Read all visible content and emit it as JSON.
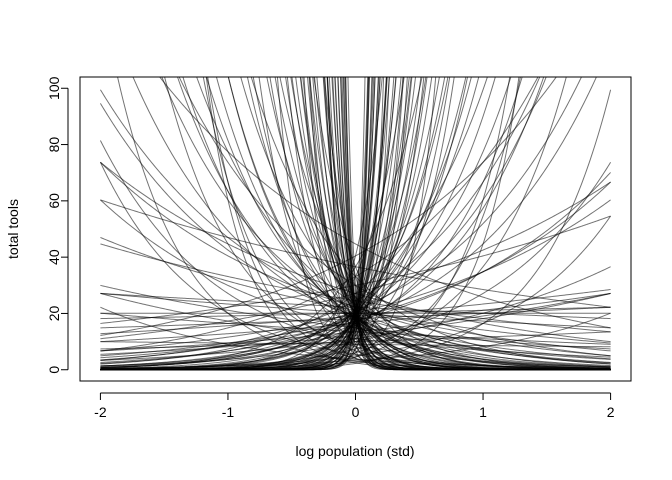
{
  "chart_data": {
    "type": "line",
    "title": "",
    "xlabel": "log population (std)",
    "ylabel": "total tools",
    "xlim": [
      -2.16,
      2.16
    ],
    "ylim": [
      -4,
      104
    ],
    "x_ticks": [
      -2,
      -1,
      0,
      1,
      2
    ],
    "x_tick_labels": [
      "-2",
      "-1",
      "0",
      "1",
      "2"
    ],
    "y_ticks": [
      0,
      20,
      40,
      60,
      80,
      100
    ],
    "y_tick_labels": [
      "0",
      "20",
      "40",
      "60",
      "80",
      "100"
    ],
    "grid": false,
    "legend": "none",
    "line_color": "#000000",
    "line_opacity": 0.55,
    "x_range": [
      -2,
      2
    ],
    "curve_model": "lambda = exp(a + b * x)",
    "prior_draws": [
      {
        "a": 3.0,
        "b": 0.0
      },
      {
        "a": 2.9,
        "b": 0.1
      },
      {
        "a": 3.1,
        "b": -0.1
      },
      {
        "a": 2.8,
        "b": 0.25
      },
      {
        "a": 3.2,
        "b": -0.3
      },
      {
        "a": 2.7,
        "b": -0.35
      },
      {
        "a": 3.0,
        "b": 0.55
      },
      {
        "a": 3.1,
        "b": -0.6
      },
      {
        "a": 2.85,
        "b": 0.7
      },
      {
        "a": 2.95,
        "b": -0.8
      },
      {
        "a": 3.05,
        "b": 0.9
      },
      {
        "a": 2.9,
        "b": -1.0
      },
      {
        "a": 3.0,
        "b": 1.1
      },
      {
        "a": 3.15,
        "b": -1.2
      },
      {
        "a": 2.8,
        "b": 1.25
      },
      {
        "a": 2.75,
        "b": -1.4
      },
      {
        "a": 3.0,
        "b": 1.5
      },
      {
        "a": 2.9,
        "b": -1.6
      },
      {
        "a": 3.1,
        "b": 1.7
      },
      {
        "a": 2.85,
        "b": -1.8
      },
      {
        "a": 3.0,
        "b": 1.9
      },
      {
        "a": 2.95,
        "b": -2.0
      },
      {
        "a": 3.05,
        "b": 2.2
      },
      {
        "a": 2.8,
        "b": -2.3
      },
      {
        "a": 3.0,
        "b": 2.5
      },
      {
        "a": 2.9,
        "b": -2.6
      },
      {
        "a": 3.1,
        "b": 2.8
      },
      {
        "a": 3.0,
        "b": -3.0
      },
      {
        "a": 2.85,
        "b": 3.2
      },
      {
        "a": 3.05,
        "b": -3.4
      },
      {
        "a": 2.95,
        "b": 3.6
      },
      {
        "a": 3.0,
        "b": -3.8
      },
      {
        "a": 2.9,
        "b": 4.0
      },
      {
        "a": 3.1,
        "b": -4.3
      },
      {
        "a": 3.0,
        "b": 4.6
      },
      {
        "a": 2.8,
        "b": -4.9
      },
      {
        "a": 3.0,
        "b": 5.2
      },
      {
        "a": 2.95,
        "b": -5.6
      },
      {
        "a": 3.05,
        "b": 6.0
      },
      {
        "a": 3.0,
        "b": -6.5
      },
      {
        "a": 2.9,
        "b": 7.0
      },
      {
        "a": 3.0,
        "b": -7.5
      },
      {
        "a": 3.1,
        "b": 8.0
      },
      {
        "a": 2.9,
        "b": -8.5
      },
      {
        "a": 3.0,
        "b": 9.0
      },
      {
        "a": 3.05,
        "b": -10.0
      },
      {
        "a": 2.95,
        "b": 11.0
      },
      {
        "a": 3.0,
        "b": -12.0
      },
      {
        "a": 2.9,
        "b": 13.0
      },
      {
        "a": 3.0,
        "b": -14.0
      },
      {
        "a": 2.3,
        "b": 1.0
      },
      {
        "a": 2.2,
        "b": -1.1
      },
      {
        "a": 2.0,
        "b": 1.6
      },
      {
        "a": 2.1,
        "b": -1.7
      },
      {
        "a": 1.8,
        "b": 2.2
      },
      {
        "a": 1.9,
        "b": -2.3
      },
      {
        "a": 2.4,
        "b": 2.9
      },
      {
        "a": 2.3,
        "b": -3.1
      },
      {
        "a": 2.5,
        "b": 4.0
      },
      {
        "a": 2.4,
        "b": -4.2
      },
      {
        "a": 2.6,
        "b": 5.5
      },
      {
        "a": 2.5,
        "b": -6.0
      },
      {
        "a": 2.7,
        "b": 8.0
      },
      {
        "a": 2.6,
        "b": -8.5
      },
      {
        "a": 3.4,
        "b": 0.3
      },
      {
        "a": 3.3,
        "b": -0.5
      },
      {
        "a": 3.5,
        "b": 0.8
      },
      {
        "a": 3.4,
        "b": -0.9
      },
      {
        "a": 3.3,
        "b": 1.3
      },
      {
        "a": 3.5,
        "b": -1.4
      },
      {
        "a": 3.6,
        "b": 2.0
      },
      {
        "a": 3.4,
        "b": -2.1
      },
      {
        "a": 3.5,
        "b": 3.0
      },
      {
        "a": 3.6,
        "b": -3.2
      },
      {
        "a": 3.7,
        "b": 4.5
      },
      {
        "a": 3.5,
        "b": -4.7
      },
      {
        "a": 2.5,
        "b": 0.4
      },
      {
        "a": 2.6,
        "b": -0.2
      },
      {
        "a": 2.4,
        "b": 0.6
      },
      {
        "a": 2.7,
        "b": -0.7
      },
      {
        "a": 1.6,
        "b": 1.2
      },
      {
        "a": 1.7,
        "b": -1.3
      },
      {
        "a": 1.5,
        "b": 2.6
      },
      {
        "a": 1.4,
        "b": -2.8
      },
      {
        "a": 2.2,
        "b": 6.5
      },
      {
        "a": 2.1,
        "b": -7.0
      },
      {
        "a": 2.0,
        "b": 10.0
      },
      {
        "a": 2.2,
        "b": -11.0
      },
      {
        "a": 3.2,
        "b": 15.0
      },
      {
        "a": 3.1,
        "b": -16.0
      },
      {
        "a": 2.8,
        "b": 18.0
      },
      {
        "a": 2.9,
        "b": -19.0
      },
      {
        "a": 3.3,
        "b": 0.45
      },
      {
        "a": 2.6,
        "b": 0.35
      },
      {
        "a": 3.6,
        "b": -0.25
      },
      {
        "a": 2.4,
        "b": -0.45
      },
      {
        "a": 3.7,
        "b": 0.6
      },
      {
        "a": 3.8,
        "b": -0.55
      },
      {
        "a": 2.3,
        "b": 0.15
      },
      {
        "a": 2.2,
        "b": -0.05
      },
      {
        "a": 3.2,
        "b": 1.0
      },
      {
        "a": 2.9,
        "b": -1.25
      },
      {
        "a": 2.75,
        "b": 1.45
      },
      {
        "a": 3.25,
        "b": -1.55
      },
      {
        "a": 2.8,
        "b": 2.1
      },
      {
        "a": 3.15,
        "b": -2.15
      },
      {
        "a": 2.65,
        "b": 2.7
      },
      {
        "a": 3.25,
        "b": -2.75
      },
      {
        "a": 2.85,
        "b": 3.5
      },
      {
        "a": 3.1,
        "b": -3.6
      },
      {
        "a": 2.7,
        "b": 4.4
      },
      {
        "a": 3.2,
        "b": -4.5
      },
      {
        "a": 2.9,
        "b": 5.8
      },
      {
        "a": 3.1,
        "b": -6.2
      },
      {
        "a": 2.8,
        "b": 7.5
      },
      {
        "a": 3.2,
        "b": -7.8
      },
      {
        "a": 2.95,
        "b": 9.5
      },
      {
        "a": 3.05,
        "b": -9.8
      },
      {
        "a": 2.75,
        "b": 12.5
      },
      {
        "a": 3.15,
        "b": -13.0
      },
      {
        "a": 2.6,
        "b": 16.0
      },
      {
        "a": 3.3,
        "b": -17.0
      },
      {
        "a": 2.5,
        "b": 20.0
      },
      {
        "a": 3.4,
        "b": -21.0
      },
      {
        "a": 1.2,
        "b": 0.9
      },
      {
        "a": 1.3,
        "b": -0.9
      },
      {
        "a": 1.0,
        "b": 1.8
      },
      {
        "a": 1.1,
        "b": -1.9
      },
      {
        "a": 0.8,
        "b": 3.0
      },
      {
        "a": 0.9,
        "b": -3.2
      },
      {
        "a": 1.5,
        "b": 5.0
      },
      {
        "a": 1.4,
        "b": -5.3
      },
      {
        "a": 1.8,
        "b": 7.0
      },
      {
        "a": 1.7,
        "b": -7.3
      },
      {
        "a": 2.0,
        "b": 12.0
      },
      {
        "a": 1.9,
        "b": -12.5
      },
      {
        "a": 3.0,
        "b": 0.05
      },
      {
        "a": 3.0,
        "b": -0.15
      },
      {
        "a": 2.95,
        "b": 0.2
      },
      {
        "a": 3.05,
        "b": -0.4
      },
      {
        "a": 2.9,
        "b": 0.65
      },
      {
        "a": 3.1,
        "b": -0.75
      },
      {
        "a": 2.85,
        "b": 0.95
      },
      {
        "a": 3.05,
        "b": -1.05
      },
      {
        "a": 3.0,
        "b": 1.35
      },
      {
        "a": 2.95,
        "b": -1.45
      },
      {
        "a": 3.05,
        "b": 1.65
      },
      {
        "a": 2.9,
        "b": -1.75
      },
      {
        "a": 3.0,
        "b": 2.35
      },
      {
        "a": 3.1,
        "b": -2.45
      },
      {
        "a": 2.85,
        "b": 3.0
      },
      {
        "a": 3.0,
        "b": -3.3
      },
      {
        "a": 3.0,
        "b": 3.9
      },
      {
        "a": 2.95,
        "b": -4.1
      },
      {
        "a": 3.05,
        "b": 5.0
      },
      {
        "a": 2.9,
        "b": -5.2
      },
      {
        "a": 3.0,
        "b": 6.8
      },
      {
        "a": 3.05,
        "b": -7.2
      },
      {
        "a": 2.95,
        "b": 8.8
      },
      {
        "a": 3.0,
        "b": -9.2
      },
      {
        "a": 3.0,
        "b": 11.5
      },
      {
        "a": 2.95,
        "b": -12.2
      },
      {
        "a": 3.05,
        "b": 14.5
      },
      {
        "a": 3.0,
        "b": -15.5
      },
      {
        "a": 2.9,
        "b": 17.5
      },
      {
        "a": 3.1,
        "b": -18.5
      },
      {
        "a": 3.0,
        "b": 22.0
      },
      {
        "a": 2.9,
        "b": -23.0
      }
    ]
  }
}
